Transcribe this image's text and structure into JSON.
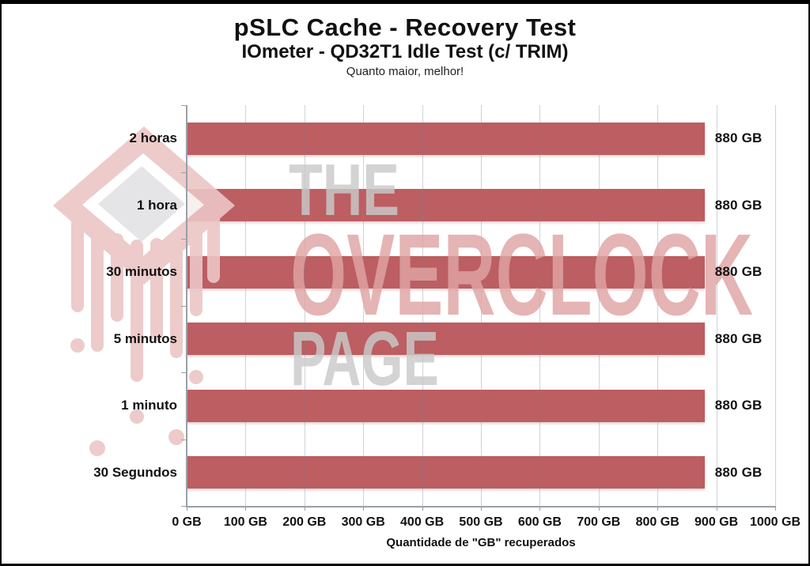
{
  "chart_data": {
    "type": "bar",
    "orientation": "horizontal",
    "title": "pSLC Cache - Recovery Test",
    "subtitle": "IOmeter - QD32T1 Idle Test (c/ TRIM)",
    "note": "Quanto maior, melhor!",
    "categories": [
      "2 horas",
      "1 hora",
      "30 minutos",
      "5 minutos",
      "1 minuto",
      "30 Segundos"
    ],
    "values": [
      880,
      880,
      880,
      880,
      880,
      880
    ],
    "value_labels": [
      "880 GB",
      "880 GB",
      "880 GB",
      "880 GB",
      "880 GB",
      "880 GB"
    ],
    "xlabel": "Quantidade de \"GB\" recuperados",
    "xlim": [
      0,
      1000
    ],
    "xticks": [
      0,
      100,
      200,
      300,
      400,
      500,
      600,
      700,
      800,
      900,
      1000
    ],
    "xtick_labels": [
      "0 GB",
      "100 GB",
      "200 GB",
      "300 GB",
      "400 GB",
      "500 GB",
      "600 GB",
      "700 GB",
      "800 GB",
      "900 GB",
      "1000 GB"
    ],
    "grid": true,
    "legend": false,
    "bar_color": "#bc5e62",
    "gridline_color": "rgba(120,130,150,0.35)",
    "axis_color": "#9aa0a6",
    "text_color": "#111111"
  },
  "watermark": {
    "line1": "THE",
    "line2": "OVERCLOCK",
    "line3": "PAGE",
    "gray_color": "#dadada",
    "red_color": "#e8b9b9"
  }
}
